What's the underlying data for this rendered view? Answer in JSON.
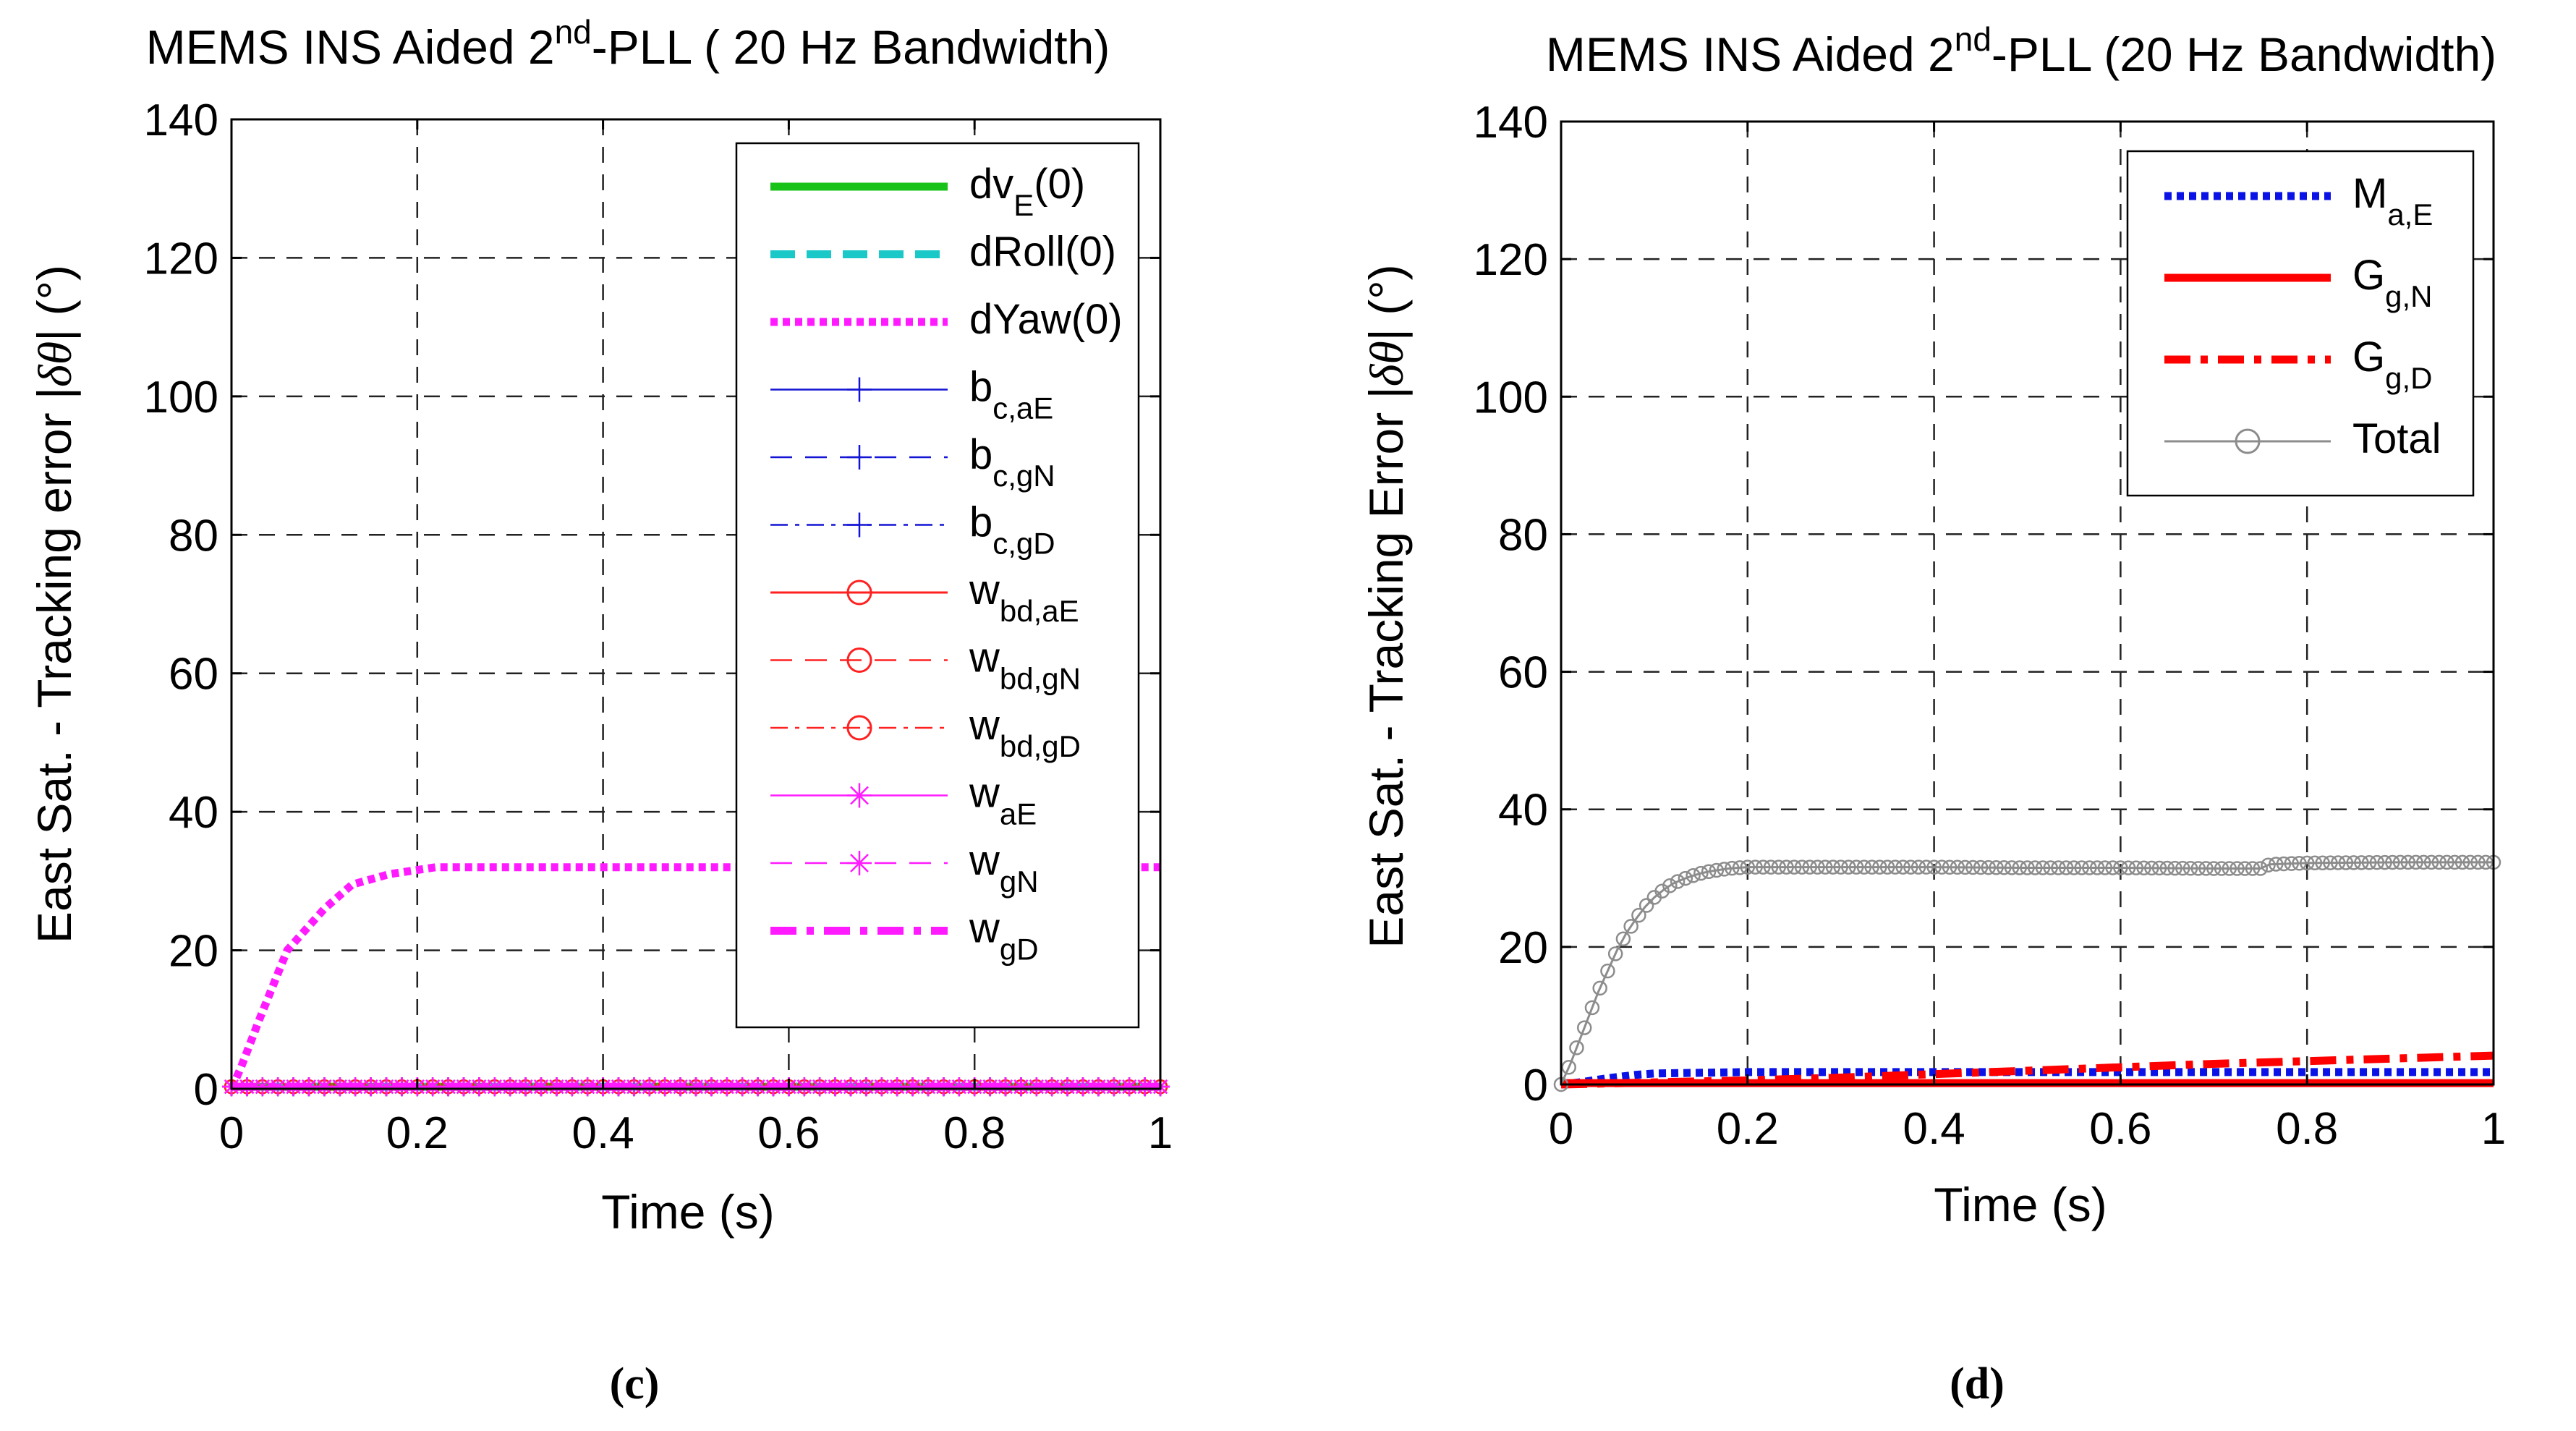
{
  "colors": {
    "green": "#19c219",
    "cyan": "#1ac8c8",
    "magenta": "#ff1aff",
    "blue": "#1414d4",
    "red": "#ff2020",
    "blue_dotted": "#0a12e6",
    "red_solid": "#ff0000",
    "gray": "#8c8c8c"
  },
  "chart_data": [
    {
      "id": "c",
      "type": "line",
      "panel_label": "(c)",
      "title": {
        "main": "MEMS INS Aided 2",
        "sup": "nd",
        "rest": "-PLL ( 20 Hz Bandwidth)"
      },
      "xlabel": "Time (s)",
      "ylabel": {
        "main": "East Sat. - Tracking error |",
        "symbol": "δθ",
        "rest": "| (°)"
      },
      "xlim": [
        0,
        1
      ],
      "ylim": [
        0,
        140
      ],
      "xticks": [
        "0",
        "0.2",
        "0.4",
        "0.6",
        "0.8",
        "1"
      ],
      "yticks": [
        "0",
        "20",
        "40",
        "60",
        "80",
        "100",
        "120",
        "140"
      ],
      "grid": true,
      "legend_position": "top-right",
      "series": [
        {
          "name": "dv",
          "sub": "E",
          "suffix": "(0)",
          "style": "solid-thick",
          "color": "green",
          "x": [
            0,
            1
          ],
          "y": [
            0.3,
            0.3
          ]
        },
        {
          "name": "dRoll(0)",
          "sub": "",
          "suffix": "",
          "style": "dashed-thick",
          "color": "cyan",
          "x": [
            0,
            1
          ],
          "y": [
            0.3,
            0.3
          ]
        },
        {
          "name": "dYaw(0)",
          "sub": "",
          "suffix": "",
          "style": "dotted-thick",
          "color": "magenta",
          "x": [
            0,
            0.01,
            0.03,
            0.06,
            0.1,
            0.13,
            0.17,
            0.2,
            0.22,
            0.3,
            0.5,
            0.7,
            1.0
          ],
          "y": [
            0,
            3,
            10,
            20,
            26,
            29.5,
            31,
            31.6,
            32,
            32,
            32,
            32,
            32
          ]
        },
        {
          "name": "b",
          "sub": "c,aE",
          "suffix": "",
          "style": "solid-plus",
          "color": "blue",
          "x": [
            0,
            1
          ],
          "y": [
            0.3,
            0.3
          ]
        },
        {
          "name": "b",
          "sub": "c,gN",
          "suffix": "",
          "style": "dashed-plus",
          "color": "blue",
          "x": [
            0,
            1
          ],
          "y": [
            0.3,
            0.3
          ]
        },
        {
          "name": "b",
          "sub": "c,gD",
          "suffix": "",
          "style": "dashdot-plus",
          "color": "blue",
          "x": [
            0,
            1
          ],
          "y": [
            0.3,
            0.3
          ]
        },
        {
          "name": "w",
          "sub": "bd,aE",
          "suffix": "",
          "style": "solid-circle",
          "color": "red",
          "x": [
            0,
            1
          ],
          "y": [
            0.3,
            0.3
          ]
        },
        {
          "name": "w",
          "sub": "bd,gN",
          "suffix": "",
          "style": "dashed-circle",
          "color": "red",
          "x": [
            0,
            1
          ],
          "y": [
            0.3,
            0.3
          ]
        },
        {
          "name": "w",
          "sub": "bd,gD",
          "suffix": "",
          "style": "dashdot-circle",
          "color": "red",
          "x": [
            0,
            1
          ],
          "y": [
            0.3,
            0.3
          ]
        },
        {
          "name": "w",
          "sub": "aE",
          "suffix": "",
          "style": "solid-star",
          "color": "magenta",
          "x": [
            0,
            1
          ],
          "y": [
            0.3,
            0.3
          ]
        },
        {
          "name": "w",
          "sub": "gN",
          "suffix": "",
          "style": "dashed-star",
          "color": "magenta",
          "x": [
            0,
            1
          ],
          "y": [
            0.3,
            0.3
          ]
        },
        {
          "name": "w",
          "sub": "gD",
          "suffix": "",
          "style": "dashdot-thick",
          "color": "magenta",
          "x": [
            0,
            1
          ],
          "y": [
            0.3,
            0.3
          ]
        }
      ]
    },
    {
      "id": "d",
      "type": "line",
      "panel_label": "(d)",
      "title": {
        "main": "MEMS INS Aided 2",
        "sup": "nd",
        "rest": "-PLL (20 Hz Bandwidth)"
      },
      "xlabel": "Time (s)",
      "ylabel": {
        "main": "East Sat. - Tracking Error |",
        "symbol": "δθ",
        "rest": "| (°)"
      },
      "xlim": [
        0,
        1
      ],
      "ylim": [
        0,
        140
      ],
      "xticks": [
        "0",
        "0.2",
        "0.4",
        "0.6",
        "0.8",
        "1"
      ],
      "yticks": [
        "0",
        "20",
        "40",
        "60",
        "80",
        "100",
        "120",
        "140"
      ],
      "grid": true,
      "legend_position": "top-right",
      "series": [
        {
          "name": "M",
          "sub": "a,E",
          "suffix": "",
          "style": "dotted-thick",
          "color": "blue_dotted",
          "x": [
            0,
            0.02,
            0.05,
            0.08,
            0.1,
            0.2,
            0.4,
            0.6,
            0.8,
            1.0
          ],
          "y": [
            0,
            0.3,
            0.9,
            1.4,
            1.6,
            1.8,
            1.8,
            1.8,
            1.8,
            1.8
          ]
        },
        {
          "name": "G",
          "sub": "g,N",
          "suffix": "",
          "style": "solid-thick",
          "color": "red_solid",
          "x": [
            0,
            1
          ],
          "y": [
            0.2,
            0.2
          ]
        },
        {
          "name": "G",
          "sub": "g,D",
          "suffix": "",
          "style": "dashdot-thick",
          "color": "red_solid",
          "x": [
            0,
            0.1,
            0.2,
            0.3,
            0.4,
            0.5,
            0.6,
            0.7,
            0.8,
            0.9,
            1.0
          ],
          "y": [
            0,
            0.3,
            0.6,
            1.0,
            1.5,
            2.0,
            2.5,
            3.0,
            3.4,
            3.8,
            4.2
          ]
        },
        {
          "name": "Total",
          "sub": "",
          "suffix": "",
          "style": "solid-circle",
          "color": "gray",
          "x": [
            0,
            0.01,
            0.02,
            0.03,
            0.04,
            0.05,
            0.06,
            0.07,
            0.08,
            0.09,
            0.1,
            0.11,
            0.12,
            0.13,
            0.14,
            0.15,
            0.16,
            0.17,
            0.18,
            0.19,
            0.2,
            0.3,
            0.4,
            0.5,
            0.6,
            0.7,
            0.75,
            0.76,
            0.8,
            0.9,
            1.0
          ],
          "y": [
            0,
            3,
            6.5,
            10,
            13.5,
            16.5,
            19.5,
            22,
            24,
            25.8,
            27.2,
            28.3,
            29.2,
            29.8,
            30.3,
            30.7,
            31,
            31.2,
            31.4,
            31.5,
            31.6,
            31.6,
            31.6,
            31.5,
            31.5,
            31.4,
            31.4,
            32,
            32.2,
            32.3,
            32.3
          ]
        }
      ]
    }
  ]
}
